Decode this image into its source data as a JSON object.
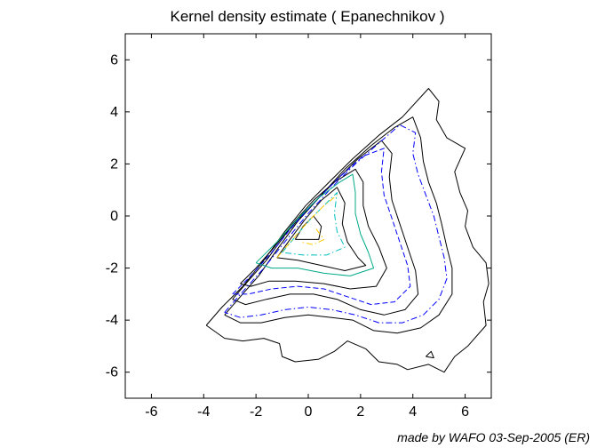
{
  "chart_data": {
    "type": "contour",
    "title": "Kernel density estimate ( Epanechnikov )",
    "xlabel": "",
    "ylabel": "",
    "xlim": [
      -7,
      7
    ],
    "ylim": [
      -7,
      7
    ],
    "xticks": [
      -6,
      -4,
      -2,
      0,
      2,
      4,
      6
    ],
    "yticks": [
      -6,
      -4,
      -2,
      0,
      2,
      4,
      6
    ],
    "grid": false,
    "credit": "made by WAFO 03-Sep-2005 (ER)",
    "contours": [
      {
        "color": "#000000",
        "style": "solid",
        "points": [
          [
            -3.9,
            -4.2
          ],
          [
            -3.3,
            -3.5
          ],
          [
            -2.5,
            -2.7
          ],
          [
            -1.7,
            -1.7
          ],
          [
            -0.9,
            -0.6
          ],
          [
            -0.1,
            0.4
          ],
          [
            0.8,
            1.3
          ],
          [
            1.7,
            2.2
          ],
          [
            2.7,
            3.1
          ],
          [
            3.6,
            3.8
          ],
          [
            4.6,
            4.9
          ],
          [
            5.0,
            4.4
          ],
          [
            4.9,
            3.7
          ],
          [
            5.3,
            3.0
          ],
          [
            6.0,
            2.6
          ],
          [
            5.6,
            1.7
          ],
          [
            5.8,
            0.9
          ],
          [
            6.1,
            0.2
          ],
          [
            6.0,
            -0.4
          ],
          [
            6.3,
            -1.2
          ],
          [
            6.8,
            -1.8
          ],
          [
            6.9,
            -2.6
          ],
          [
            6.7,
            -3.3
          ],
          [
            6.8,
            -4.2
          ],
          [
            6.1,
            -5.0
          ],
          [
            5.6,
            -5.4
          ],
          [
            5.2,
            -6.0
          ],
          [
            4.6,
            -5.7
          ],
          [
            3.8,
            -5.9
          ],
          [
            3.4,
            -5.7
          ],
          [
            2.7,
            -5.6
          ],
          [
            2.2,
            -5.1
          ],
          [
            1.5,
            -4.8
          ],
          [
            1.0,
            -5.2
          ],
          [
            0.4,
            -5.5
          ],
          [
            -0.5,
            -5.6
          ],
          [
            -1.0,
            -5.4
          ],
          [
            -1.1,
            -4.9
          ],
          [
            -1.7,
            -4.7
          ],
          [
            -2.5,
            -4.8
          ],
          [
            -3.2,
            -4.7
          ],
          [
            -3.9,
            -4.2
          ]
        ]
      },
      {
        "color": "#000000",
        "style": "solid",
        "points": [
          [
            -3.2,
            -3.8
          ],
          [
            -2.6,
            -3.1
          ],
          [
            -1.9,
            -2.3
          ],
          [
            -1.2,
            -1.3
          ],
          [
            -0.4,
            -0.2
          ],
          [
            0.5,
            0.8
          ],
          [
            1.4,
            1.8
          ],
          [
            2.4,
            2.7
          ],
          [
            3.3,
            3.4
          ],
          [
            4.0,
            3.8
          ],
          [
            4.3,
            3.0
          ],
          [
            4.4,
            2.1
          ],
          [
            4.6,
            1.3
          ],
          [
            4.9,
            0.5
          ],
          [
            5.1,
            -0.3
          ],
          [
            5.3,
            -1.2
          ],
          [
            5.5,
            -2.0
          ],
          [
            5.5,
            -3.0
          ],
          [
            5.0,
            -3.8
          ],
          [
            4.3,
            -4.3
          ],
          [
            3.4,
            -4.5
          ],
          [
            2.5,
            -4.4
          ],
          [
            1.7,
            -4.0
          ],
          [
            0.9,
            -3.9
          ],
          [
            0.0,
            -3.8
          ],
          [
            -0.9,
            -3.9
          ],
          [
            -1.8,
            -4.1
          ],
          [
            -2.6,
            -4.1
          ],
          [
            -3.2,
            -3.8
          ]
        ]
      },
      {
        "color": "#000000",
        "style": "solid",
        "points": [
          [
            -2.9,
            -3.2
          ],
          [
            -2.3,
            -2.5
          ],
          [
            -1.6,
            -1.7
          ],
          [
            -0.8,
            -0.6
          ],
          [
            0.1,
            0.4
          ],
          [
            1.0,
            1.3
          ],
          [
            1.9,
            2.2
          ],
          [
            2.8,
            2.9
          ],
          [
            3.2,
            2.4
          ],
          [
            3.1,
            1.5
          ],
          [
            3.2,
            0.6
          ],
          [
            3.5,
            -0.3
          ],
          [
            3.8,
            -1.2
          ],
          [
            4.1,
            -2.1
          ],
          [
            4.2,
            -3.0
          ],
          [
            3.7,
            -3.6
          ],
          [
            2.9,
            -3.8
          ],
          [
            2.0,
            -3.6
          ],
          [
            1.1,
            -3.2
          ],
          [
            0.2,
            -3.0
          ],
          [
            -0.7,
            -3.0
          ],
          [
            -1.6,
            -3.2
          ],
          [
            -2.4,
            -3.4
          ],
          [
            -2.9,
            -3.2
          ]
        ]
      },
      {
        "color": "#000000",
        "style": "solid",
        "points": [
          [
            -2.6,
            -2.6
          ],
          [
            -2.0,
            -2.0
          ],
          [
            -1.3,
            -1.2
          ],
          [
            -0.6,
            -0.3
          ],
          [
            0.2,
            0.6
          ],
          [
            1.0,
            1.3
          ],
          [
            1.8,
            1.8
          ],
          [
            2.1,
            1.3
          ],
          [
            2.1,
            0.4
          ],
          [
            2.3,
            -0.4
          ],
          [
            2.7,
            -1.2
          ],
          [
            3.0,
            -2.0
          ],
          [
            2.6,
            -2.7
          ],
          [
            1.6,
            -2.8
          ],
          [
            0.6,
            -2.6
          ],
          [
            -0.5,
            -2.5
          ],
          [
            -1.5,
            -2.5
          ],
          [
            -2.2,
            -2.7
          ],
          [
            -2.6,
            -2.6
          ]
        ]
      },
      {
        "color": "#000000",
        "style": "solid",
        "points": [
          [
            -1.2,
            -1.6
          ],
          [
            -0.7,
            -0.9
          ],
          [
            -0.1,
            -0.1
          ],
          [
            0.5,
            0.6
          ],
          [
            1.1,
            1.1
          ],
          [
            1.4,
            0.5
          ],
          [
            1.3,
            -0.3
          ],
          [
            1.5,
            -1.0
          ],
          [
            1.9,
            -1.6
          ],
          [
            2.2,
            -1.9
          ],
          [
            1.4,
            -2.1
          ],
          [
            0.5,
            -1.9
          ],
          [
            -0.4,
            -1.7
          ],
          [
            -1.2,
            -1.6
          ]
        ]
      },
      {
        "color": "#000000",
        "style": "solid",
        "points": [
          [
            -0.5,
            -0.9
          ],
          [
            -0.2,
            -0.4
          ],
          [
            0.2,
            0.0
          ],
          [
            0.5,
            -0.4
          ],
          [
            0.4,
            -0.9
          ],
          [
            -0.5,
            -0.9
          ]
        ]
      },
      {
        "color": "#000000",
        "style": "solid",
        "points": [
          [
            4.5,
            -5.4
          ],
          [
            4.7,
            -5.2
          ],
          [
            4.8,
            -5.45
          ],
          [
            4.5,
            -5.4
          ]
        ]
      },
      {
        "color": "#0000ff",
        "style": "dashdot",
        "points": [
          [
            -3.2,
            -3.7
          ],
          [
            -2.5,
            -2.9
          ],
          [
            -1.7,
            -2.0
          ],
          [
            -0.9,
            -1.0
          ],
          [
            0.0,
            0.1
          ],
          [
            0.9,
            1.1
          ],
          [
            1.8,
            2.0
          ],
          [
            2.7,
            2.8
          ],
          [
            3.5,
            3.5
          ],
          [
            4.1,
            3.2
          ],
          [
            4.0,
            2.4
          ],
          [
            4.2,
            1.6
          ],
          [
            4.5,
            0.8
          ],
          [
            4.8,
            0.0
          ],
          [
            5.0,
            -0.8
          ],
          [
            5.2,
            -1.6
          ],
          [
            5.3,
            -2.4
          ],
          [
            5.0,
            -3.2
          ],
          [
            4.4,
            -3.8
          ],
          [
            3.6,
            -4.1
          ],
          [
            2.7,
            -4.1
          ],
          [
            1.8,
            -3.8
          ],
          [
            0.9,
            -3.6
          ],
          [
            0.0,
            -3.5
          ],
          [
            -0.9,
            -3.6
          ],
          [
            -1.8,
            -3.8
          ],
          [
            -2.6,
            -3.9
          ],
          [
            -3.2,
            -3.7
          ]
        ]
      },
      {
        "color": "#0000ff",
        "style": "dashed",
        "points": [
          [
            -2.9,
            -3.0
          ],
          [
            -2.2,
            -2.3
          ],
          [
            -1.4,
            -1.4
          ],
          [
            -0.6,
            -0.4
          ],
          [
            0.3,
            0.6
          ],
          [
            1.2,
            1.5
          ],
          [
            2.1,
            2.3
          ],
          [
            2.9,
            2.6
          ],
          [
            2.8,
            1.7
          ],
          [
            2.9,
            0.8
          ],
          [
            3.2,
            -0.1
          ],
          [
            3.5,
            -1.0
          ],
          [
            3.8,
            -1.9
          ],
          [
            3.9,
            -2.7
          ],
          [
            3.3,
            -3.3
          ],
          [
            2.4,
            -3.4
          ],
          [
            1.5,
            -3.1
          ],
          [
            0.6,
            -2.8
          ],
          [
            -0.4,
            -2.7
          ],
          [
            -1.4,
            -2.8
          ],
          [
            -2.3,
            -3.0
          ],
          [
            -2.9,
            -3.0
          ]
        ]
      },
      {
        "color": "#00aa88",
        "style": "solid",
        "points": [
          [
            -2.0,
            -1.8
          ],
          [
            -1.2,
            -1.0
          ],
          [
            -0.4,
            -0.1
          ],
          [
            0.4,
            0.7
          ],
          [
            1.2,
            1.3
          ],
          [
            1.7,
            1.6
          ],
          [
            1.8,
            0.9
          ],
          [
            1.8,
            0.1
          ],
          [
            2.0,
            -0.7
          ],
          [
            2.3,
            -1.4
          ],
          [
            2.5,
            -2.0
          ],
          [
            1.6,
            -2.3
          ],
          [
            0.6,
            -2.2
          ],
          [
            -0.4,
            -2.0
          ],
          [
            -1.4,
            -2.0
          ],
          [
            -2.0,
            -1.8
          ]
        ]
      },
      {
        "color": "#00bfbf",
        "style": "dashdot",
        "points": [
          [
            -1.0,
            -1.4
          ],
          [
            -0.5,
            -0.8
          ],
          [
            0.1,
            -0.1
          ],
          [
            0.7,
            0.5
          ],
          [
            1.1,
            0.9
          ],
          [
            1.0,
            0.1
          ],
          [
            1.1,
            -0.6
          ],
          [
            1.4,
            -1.2
          ],
          [
            0.7,
            -1.5
          ],
          [
            -0.2,
            -1.5
          ],
          [
            -1.0,
            -1.4
          ]
        ]
      },
      {
        "color": "#ffcc00",
        "style": "dashdot",
        "points": [
          [
            -1.2,
            -1.6
          ],
          [
            -0.6,
            -0.9
          ],
          [
            0.0,
            -0.2
          ],
          [
            0.6,
            0.4
          ],
          [
            1.1,
            0.8
          ]
        ]
      },
      {
        "color": "#ffcc00",
        "style": "dashdot",
        "points": [
          [
            0.3,
            -0.5
          ],
          [
            0.6,
            -0.9
          ],
          [
            0.2,
            -1.1
          ],
          [
            -0.3,
            -1.0
          ]
        ]
      }
    ]
  }
}
